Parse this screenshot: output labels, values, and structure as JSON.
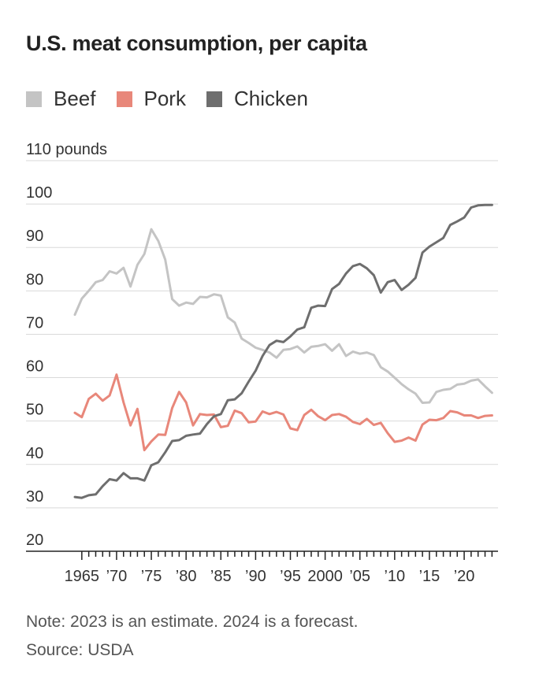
{
  "chart_data": {
    "type": "line",
    "title": "U.S. meat consumption, per capita",
    "ylabel_unit": "pounds",
    "ylim": [
      20,
      110
    ],
    "yticks": [
      20,
      30,
      40,
      50,
      60,
      70,
      80,
      90,
      100,
      110
    ],
    "ytick_labels": [
      "20",
      "30",
      "40",
      "50",
      "60",
      "70",
      "80",
      "90",
      "100",
      "110 pounds"
    ],
    "xlim": [
      1964,
      2024.3
    ],
    "xtick_positions": [
      1965,
      1970,
      1975,
      1980,
      1985,
      1990,
      1995,
      2000,
      2005,
      2010,
      2015,
      2020
    ],
    "xtick_labels": [
      "1965",
      "’70",
      "’75",
      "’80",
      "’85",
      "’90",
      "’95",
      "2000",
      "’05",
      "’10",
      "’15",
      "’20"
    ],
    "x": [
      1964,
      1965,
      1966,
      1967,
      1968,
      1969,
      1970,
      1971,
      1972,
      1973,
      1974,
      1975,
      1976,
      1977,
      1978,
      1979,
      1980,
      1981,
      1982,
      1983,
      1984,
      1985,
      1986,
      1987,
      1988,
      1989,
      1990,
      1991,
      1992,
      1993,
      1994,
      1995,
      1996,
      1997,
      1998,
      1999,
      2000,
      2001,
      2002,
      2003,
      2004,
      2005,
      2006,
      2007,
      2008,
      2009,
      2010,
      2011,
      2012,
      2013,
      2014,
      2015,
      2016,
      2017,
      2018,
      2019,
      2020,
      2021,
      2022,
      2023,
      2024
    ],
    "series": [
      {
        "name": "Beef",
        "color": "#c4c4c4",
        "values": [
          74.5,
          78.2,
          80,
          82,
          82.5,
          84.5,
          84,
          85.3,
          81,
          86,
          88.5,
          94.2,
          91.5,
          87.2,
          78.1,
          76.6,
          77.3,
          77,
          78.6,
          78.5,
          79.2,
          78.9,
          73.9,
          72.7,
          69,
          68,
          66.9,
          66.4,
          65.8,
          64.6,
          66.4,
          66.6,
          67.2,
          65.8,
          67.1,
          67.3,
          67.7,
          66.2,
          67.7,
          65,
          66,
          65.5,
          65.8,
          65.2,
          62.4,
          61.4,
          60,
          58.5,
          57.3,
          56.3,
          54.2,
          54.3,
          56.7,
          57.2,
          57.4,
          58.4,
          58.6,
          59.3,
          59.6,
          58,
          56.5
        ]
      },
      {
        "name": "Pork",
        "color": "#e8877a",
        "values": [
          51.9,
          50.9,
          55.1,
          56.3,
          54.7,
          55.9,
          60.7,
          54.3,
          49,
          52.8,
          43.3,
          45.3,
          46.9,
          46.8,
          53,
          56.7,
          54.3,
          49,
          51.6,
          51.4,
          51.5,
          48.6,
          48.9,
          52.4,
          51.8,
          49.7,
          49.9,
          52.2,
          51.6,
          52.1,
          51.5,
          48.3,
          47.9,
          51.4,
          52.6,
          51.1,
          50.2,
          51.4,
          51.6,
          51,
          49.8,
          49.3,
          50.5,
          49.1,
          49.6,
          47.2,
          45.2,
          45.5,
          46.2,
          45.5,
          49.2,
          50.3,
          50.2,
          50.7,
          52.3,
          52,
          51.3,
          51.3,
          50.7,
          51.2,
          51.3
        ]
      },
      {
        "name": "Chicken",
        "color": "#6e6e6e",
        "values": [
          32.5,
          32.3,
          32.9,
          33.1,
          35,
          36.6,
          36.3,
          38,
          36.8,
          36.8,
          36.3,
          39.8,
          40.5,
          42.8,
          45.4,
          45.6,
          46.6,
          46.9,
          47.1,
          49.3,
          51.1,
          51.6,
          54.8,
          55,
          56.4,
          59.1,
          61.6,
          65,
          67.5,
          68.5,
          68.2,
          69.5,
          71.1,
          71.6,
          76.1,
          76.6,
          76.5,
          80.4,
          81.6,
          84,
          85.7,
          86.2,
          85.2,
          83.6,
          79.6,
          82,
          82.5,
          80.2,
          81.4,
          83,
          88.8,
          90.2,
          91.2,
          92.2,
          95.2,
          96,
          96.9,
          99.2,
          99.7,
          99.8,
          99.8
        ]
      }
    ]
  },
  "legend": [
    {
      "label": "Beef",
      "color": "#c4c4c4"
    },
    {
      "label": "Pork",
      "color": "#e8877a"
    },
    {
      "label": "Chicken",
      "color": "#6e6e6e"
    }
  ],
  "footer": {
    "note": "Note: 2023 is an estimate. 2024 is a forecast.",
    "source": "Source: USDA"
  }
}
